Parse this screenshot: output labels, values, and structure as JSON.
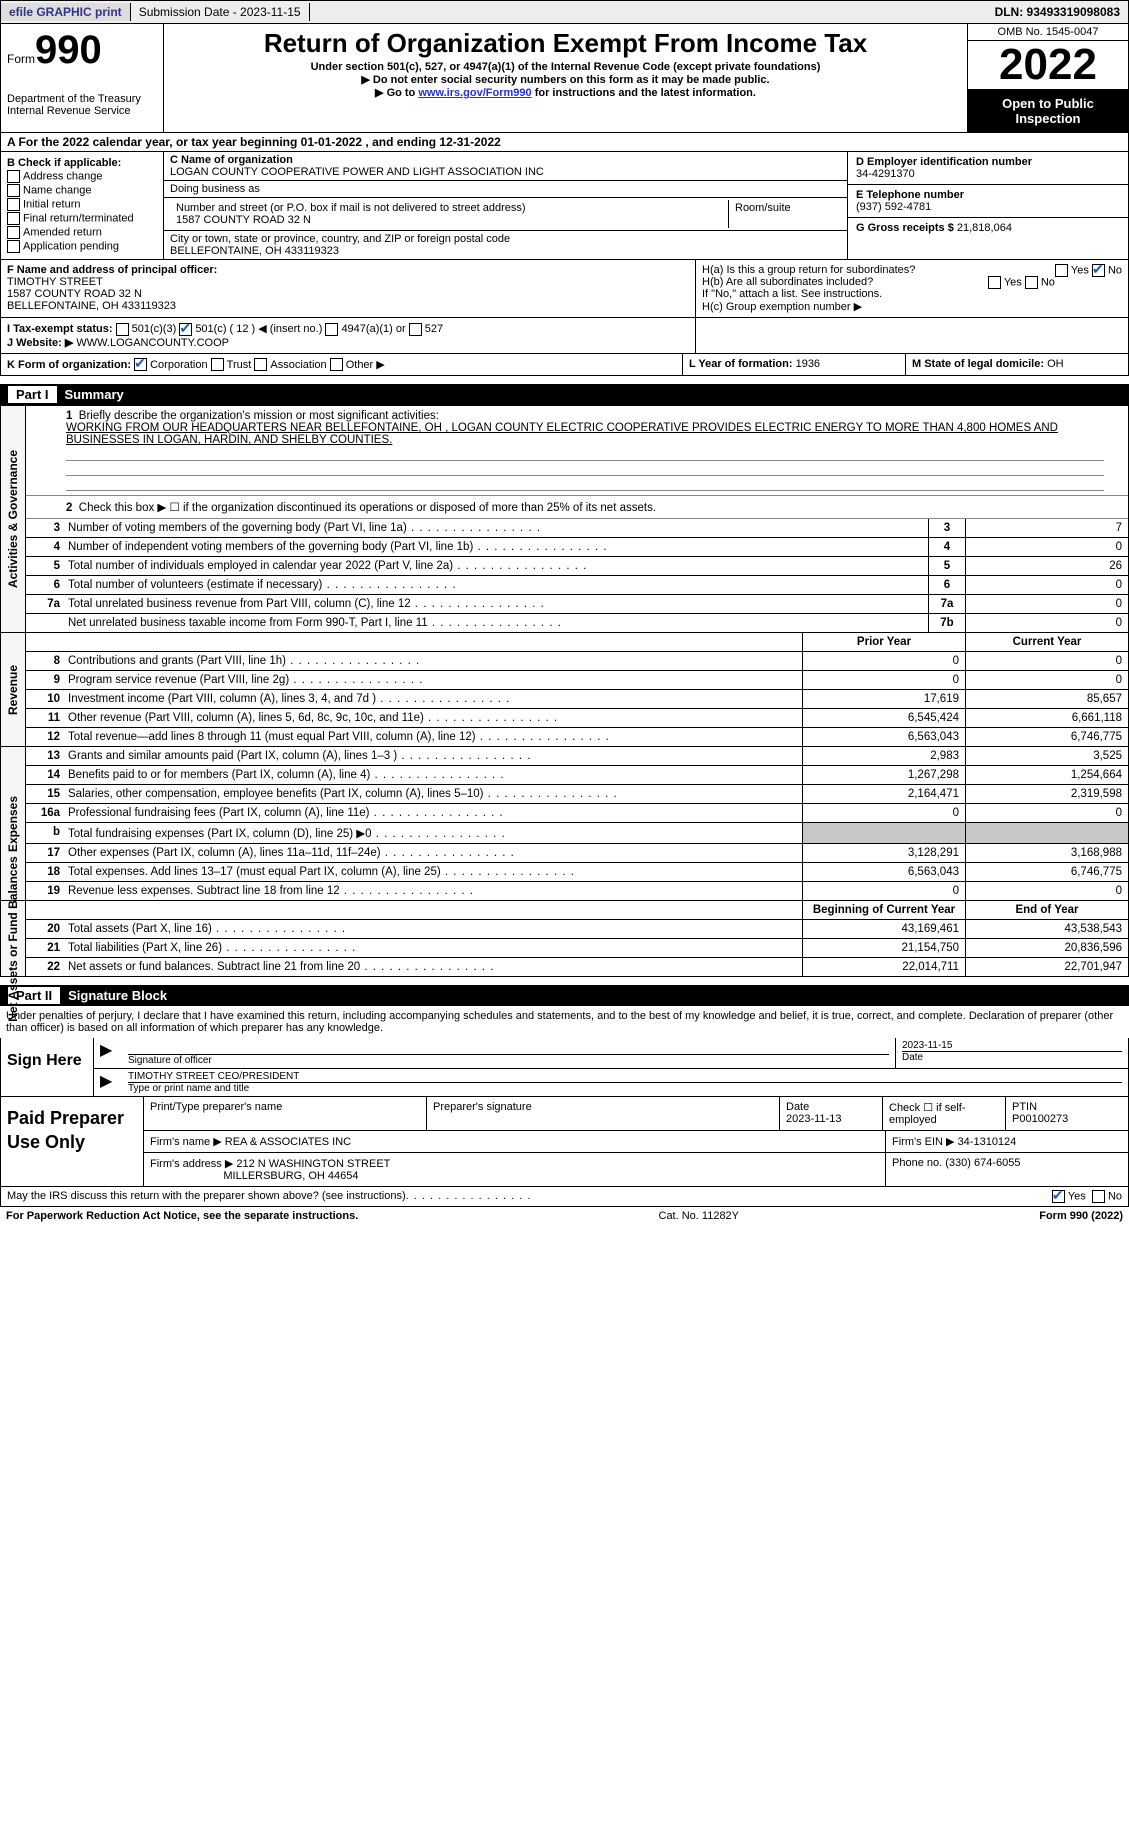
{
  "topbar": {
    "efile": "efile GRAPHIC print",
    "submission": "Submission Date - 2023-11-15",
    "dln": "DLN: 93493319098083"
  },
  "header": {
    "form_label": "Form",
    "form_number": "990",
    "title": "Return of Organization Exempt From Income Tax",
    "subtitle": "Under section 501(c), 527, or 4947(a)(1) of the Internal Revenue Code (except private foundations)",
    "note1": "▶ Do not enter social security numbers on this form as it may be made public.",
    "note2_pre": "▶ Go to ",
    "note2_link": "www.irs.gov/Form990",
    "note2_post": " for instructions and the latest information.",
    "dept": "Department of the Treasury\nInternal Revenue Service",
    "omb": "OMB No. 1545-0047",
    "year": "2022",
    "open": "Open to Public Inspection"
  },
  "A": {
    "text_pre": "A For the 2022 calendar year, or tax year beginning ",
    "begin": "01-01-2022",
    "mid": " , and ending ",
    "end": "12-31-2022"
  },
  "B": {
    "label": "B Check if applicable:",
    "items": [
      "Address change",
      "Name change",
      "Initial return",
      "Final return/terminated",
      "Amended return",
      "Application pending"
    ]
  },
  "C": {
    "name_label": "C Name of organization",
    "name": "LOGAN COUNTY COOPERATIVE POWER AND LIGHT ASSOCIATION INC",
    "dba_label": "Doing business as",
    "dba": "",
    "addr_label": "Number and street (or P.O. box if mail is not delivered to street address)",
    "room_label": "Room/suite",
    "addr": "1587 COUNTY ROAD 32 N",
    "city_label": "City or town, state or province, country, and ZIP or foreign postal code",
    "city": "BELLEFONTAINE, OH  433119323"
  },
  "D": {
    "label": "D Employer identification number",
    "value": "34-4291370"
  },
  "E": {
    "label": "E Telephone number",
    "value": "(937) 592-4781"
  },
  "G": {
    "label": "G Gross receipts $",
    "value": "21,818,064"
  },
  "F": {
    "label": "F Name and address of principal officer:",
    "name": "TIMOTHY STREET",
    "addr1": "1587 COUNTY ROAD 32 N",
    "addr2": "BELLEFONTAINE, OH  433119323"
  },
  "H": {
    "a": "H(a)  Is this a group return for subordinates?",
    "b": "H(b)  Are all subordinates included?",
    "b_note": "If \"No,\" attach a list. See instructions.",
    "c": "H(c)  Group exemption number ▶",
    "yes": "Yes",
    "no": "No"
  },
  "I": {
    "label": "I   Tax-exempt status:",
    "opts": [
      "501(c)(3)",
      "501(c) ( 12 ) ◀ (insert no.)",
      "4947(a)(1) or",
      "527"
    ]
  },
  "J": {
    "label": "J   Website: ▶",
    "value": "WWW.LOGANCOUNTY.COOP"
  },
  "K": {
    "label": "K Form of organization:",
    "opts": [
      "Corporation",
      "Trust",
      "Association",
      "Other ▶"
    ]
  },
  "L": {
    "label": "L Year of formation:",
    "value": "1936"
  },
  "M": {
    "label": "M State of legal domicile:",
    "value": "OH"
  },
  "part1": {
    "title": "Part I",
    "name": "Summary",
    "line1_label": "Briefly describe the organization's mission or most significant activities:",
    "line1_text": "WORKING FROM OUR HEADQUARTERS NEAR BELLEFONTAINE, OH , LOGAN COUNTY ELECTRIC COOPERATIVE PROVIDES ELECTRIC ENERGY TO MORE THAN 4,800 HOMES AND BUSINESSES IN LOGAN, HARDIN, AND SHELBY COUNTIES.",
    "line2": "Check this box ▶ ☐ if the organization discontinued its operations or disposed of more than 25% of its net assets."
  },
  "sections": {
    "gov": "Activities & Governance",
    "rev": "Revenue",
    "exp": "Expenses",
    "net": "Net Assets or Fund Balances"
  },
  "gov_rows": [
    {
      "n": "3",
      "d": "Number of voting members of the governing body (Part VI, line 1a)",
      "nb": "3",
      "v": "7"
    },
    {
      "n": "4",
      "d": "Number of independent voting members of the governing body (Part VI, line 1b)",
      "nb": "4",
      "v": "0"
    },
    {
      "n": "5",
      "d": "Total number of individuals employed in calendar year 2022 (Part V, line 2a)",
      "nb": "5",
      "v": "26"
    },
    {
      "n": "6",
      "d": "Total number of volunteers (estimate if necessary)",
      "nb": "6",
      "v": "0"
    },
    {
      "n": "7a",
      "d": "Total unrelated business revenue from Part VIII, column (C), line 12",
      "nb": "7a",
      "v": "0"
    },
    {
      "n": "",
      "d": "Net unrelated business taxable income from Form 990-T, Part I, line 11",
      "nb": "7b",
      "v": "0"
    }
  ],
  "col_headers": {
    "prior": "Prior Year",
    "current": "Current Year",
    "begin": "Beginning of Current Year",
    "end": "End of Year"
  },
  "rev_rows": [
    {
      "n": "8",
      "d": "Contributions and grants (Part VIII, line 1h)",
      "p": "0",
      "c": "0"
    },
    {
      "n": "9",
      "d": "Program service revenue (Part VIII, line 2g)",
      "p": "0",
      "c": "0"
    },
    {
      "n": "10",
      "d": "Investment income (Part VIII, column (A), lines 3, 4, and 7d )",
      "p": "17,619",
      "c": "85,657"
    },
    {
      "n": "11",
      "d": "Other revenue (Part VIII, column (A), lines 5, 6d, 8c, 9c, 10c, and 11e)",
      "p": "6,545,424",
      "c": "6,661,118"
    },
    {
      "n": "12",
      "d": "Total revenue—add lines 8 through 11 (must equal Part VIII, column (A), line 12)",
      "p": "6,563,043",
      "c": "6,746,775"
    }
  ],
  "exp_rows": [
    {
      "n": "13",
      "d": "Grants and similar amounts paid (Part IX, column (A), lines 1–3 )",
      "p": "2,983",
      "c": "3,525"
    },
    {
      "n": "14",
      "d": "Benefits paid to or for members (Part IX, column (A), line 4)",
      "p": "1,267,298",
      "c": "1,254,664"
    },
    {
      "n": "15",
      "d": "Salaries, other compensation, employee benefits (Part IX, column (A), lines 5–10)",
      "p": "2,164,471",
      "c": "2,319,598"
    },
    {
      "n": "16a",
      "d": "Professional fundraising fees (Part IX, column (A), line 11e)",
      "p": "0",
      "c": "0"
    },
    {
      "n": "b",
      "d": "Total fundraising expenses (Part IX, column (D), line 25) ▶0",
      "p": "",
      "c": "",
      "shaded": true
    },
    {
      "n": "17",
      "d": "Other expenses (Part IX, column (A), lines 11a–11d, 11f–24e)",
      "p": "3,128,291",
      "c": "3,168,988"
    },
    {
      "n": "18",
      "d": "Total expenses. Add lines 13–17 (must equal Part IX, column (A), line 25)",
      "p": "6,563,043",
      "c": "6,746,775"
    },
    {
      "n": "19",
      "d": "Revenue less expenses. Subtract line 18 from line 12",
      "p": "0",
      "c": "0"
    }
  ],
  "net_rows": [
    {
      "n": "20",
      "d": "Total assets (Part X, line 16)",
      "p": "43,169,461",
      "c": "43,538,543"
    },
    {
      "n": "21",
      "d": "Total liabilities (Part X, line 26)",
      "p": "21,154,750",
      "c": "20,836,596"
    },
    {
      "n": "22",
      "d": "Net assets or fund balances. Subtract line 21 from line 20",
      "p": "22,014,711",
      "c": "22,701,947"
    }
  ],
  "part2": {
    "title": "Part II",
    "name": "Signature Block",
    "decl": "Under penalties of perjury, I declare that I have examined this return, including accompanying schedules and statements, and to the best of my knowledge and belief, it is true, correct, and complete. Declaration of preparer (other than officer) is based on all information of which preparer has any knowledge."
  },
  "sign": {
    "label": "Sign Here",
    "sig_of_officer": "Signature of officer",
    "date": "Date",
    "date_val": "2023-11-15",
    "name_title": "TIMOTHY STREET CEO/PRESIDENT",
    "type_name": "Type or print name and title"
  },
  "prep": {
    "label": "Paid Preparer Use Only",
    "h1": "Print/Type preparer's name",
    "h2": "Preparer's signature",
    "h3": "Date",
    "h3v": "2023-11-13",
    "h4": "Check ☐ if self-employed",
    "h5": "PTIN",
    "h5v": "P00100273",
    "firm_label": "Firm's name    ▶",
    "firm": "REA & ASSOCIATES INC",
    "ein_label": "Firm's EIN ▶",
    "ein": "34-1310124",
    "addr_label": "Firm's address ▶",
    "addr1": "212 N WASHINGTON STREET",
    "addr2": "MILLERSBURG, OH  44654",
    "phone_label": "Phone no.",
    "phone": "(330) 674-6055"
  },
  "discuss": {
    "text": "May the IRS discuss this return with the preparer shown above? (see instructions)",
    "yes": "Yes",
    "no": "No"
  },
  "footer": {
    "left": "For Paperwork Reduction Act Notice, see the separate instructions.",
    "center": "Cat. No. 11282Y",
    "right": "Form 990 (2022)"
  }
}
